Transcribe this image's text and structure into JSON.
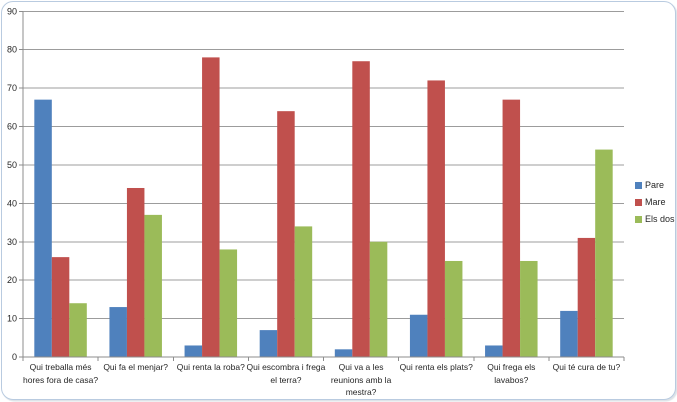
{
  "chart_frame": {
    "border_color": "#b9cbe0",
    "background": "#ffffff"
  },
  "chart_data": {
    "type": "bar",
    "title": "",
    "xlabel": "",
    "ylabel": "",
    "categories": [
      "Qui treballa més hores fora de casa?",
      "Qui fa el menjar?",
      "Qui renta la roba?",
      "Qui escombra i frega el terra?",
      "Qui va a les reunions amb la mestra?",
      "Qui renta els plats?",
      "Qui frega els lavabos?",
      "Qui té cura de tu?"
    ],
    "series": [
      {
        "name": "Pare",
        "color": "#4f81bd",
        "values": [
          67,
          13,
          3,
          7,
          2,
          11,
          3,
          12
        ]
      },
      {
        "name": "Mare",
        "color": "#c0504d",
        "values": [
          26,
          44,
          78,
          64,
          77,
          72,
          67,
          31
        ]
      },
      {
        "name": "Els dos",
        "color": "#9bbb59",
        "values": [
          14,
          37,
          28,
          34,
          30,
          25,
          25,
          54
        ]
      }
    ],
    "ylim": [
      0,
      90
    ],
    "ytick_step": 10,
    "grid": true,
    "legend_position": "right",
    "gridline_color": "#9c9c9c",
    "axis_color": "#8c8c8c",
    "text_color": "#262626"
  }
}
